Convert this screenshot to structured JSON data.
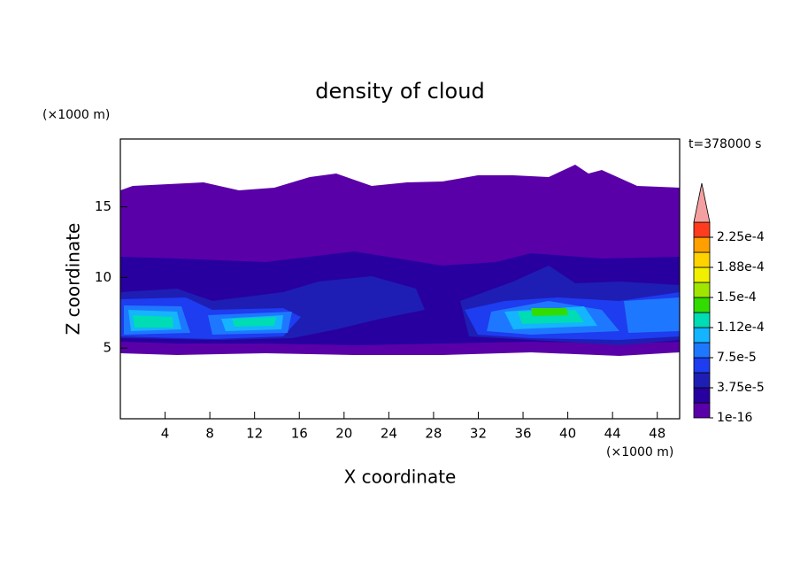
{
  "chart_data": {
    "type": "contour",
    "title": "density of cloud",
    "xlabel": "X coordinate",
    "ylabel": "Z coordinate",
    "xunit": "(×1000 m)",
    "yunit": "(×1000 m)",
    "annotation": "t=378000 s",
    "xlim": [
      0,
      50
    ],
    "ylim": [
      0,
      19.8
    ],
    "xticks": [
      4,
      8,
      12,
      16,
      20,
      24,
      28,
      32,
      36,
      40,
      44,
      48
    ],
    "yticks": [
      5,
      10,
      15
    ],
    "colorbar": {
      "levels": [
        1e-16,
        1.875e-05,
        3.75e-05,
        5.625e-05,
        7.5e-05,
        9.375e-05,
        0.0001125,
        0.00013125,
        0.00015,
        0.00016875,
        0.0001875,
        0.00020625,
        0.000225,
        0.00024375
      ],
      "colors": [
        "#5a00a8",
        "#2800a0",
        "#1e1eb4",
        "#1e3cf0",
        "#1e78ff",
        "#14b4ff",
        "#00dcb4",
        "#32dc00",
        "#a0e600",
        "#f0f000",
        "#ffd200",
        "#ffa000",
        "#ff3c1e"
      ],
      "extend_color": "#f5a0a0",
      "ticks": [
        {
          "value": 1e-16,
          "label": "1e-16"
        },
        {
          "value": 3.75e-05,
          "label": "3.75e-5"
        },
        {
          "value": 7.5e-05,
          "label": "7.5e-5"
        },
        {
          "value": 0.0001125,
          "label": "1.12e-4"
        },
        {
          "value": 0.00015,
          "label": "1.5e-4"
        },
        {
          "value": 0.0001875,
          "label": "1.88e-4"
        },
        {
          "value": 0.000225,
          "label": "2.25e-4"
        }
      ]
    }
  }
}
